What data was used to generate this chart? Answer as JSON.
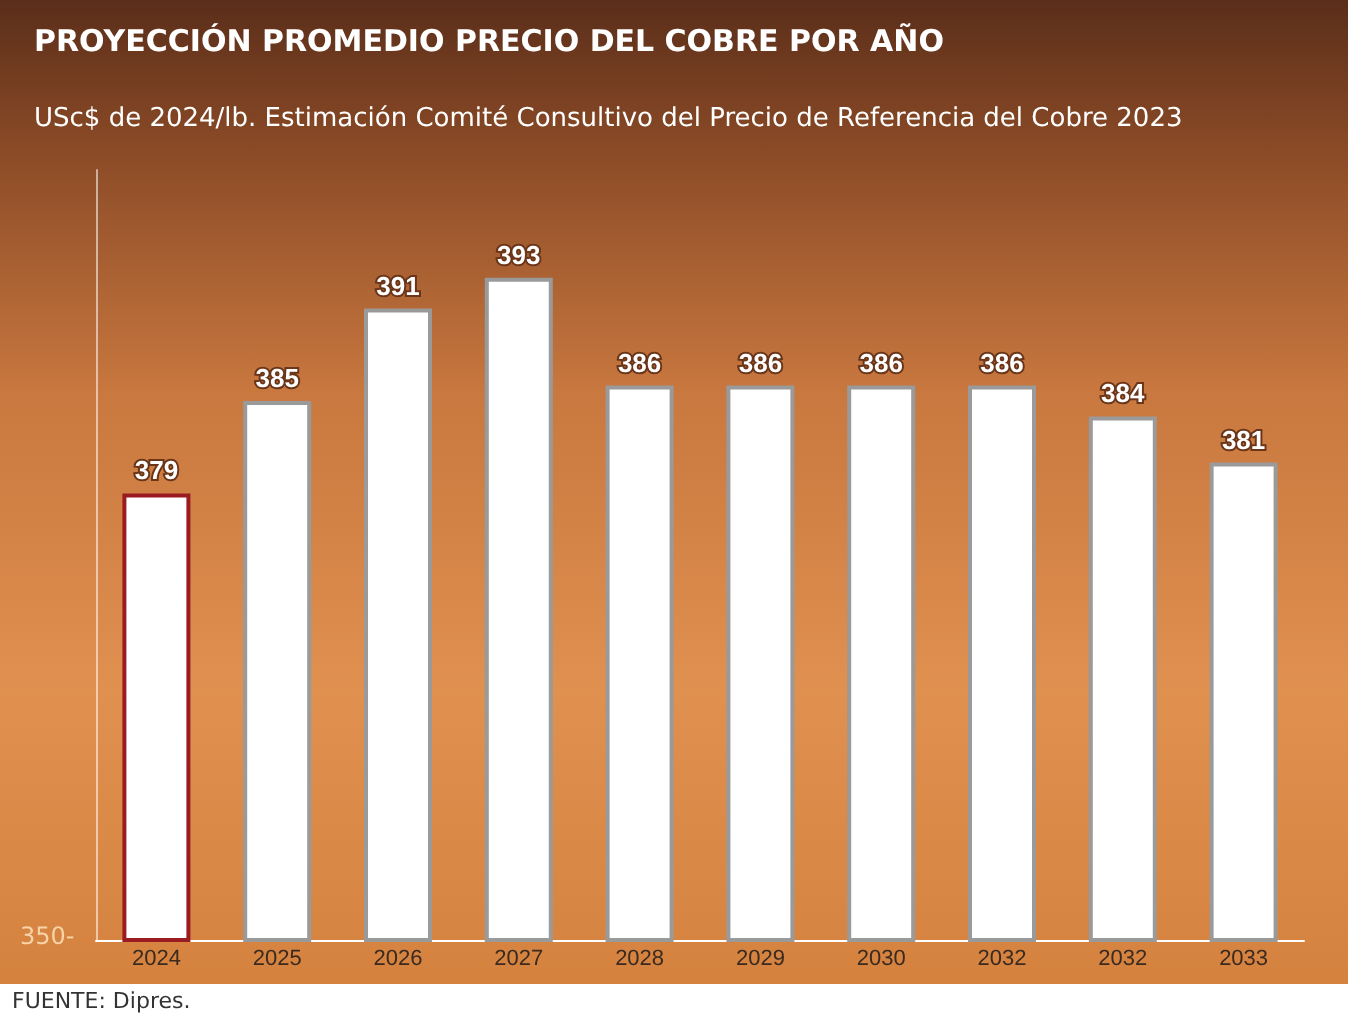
{
  "chart_data": {
    "type": "bar",
    "title": "PROYECCIÓN PROMEDIO PRECIO DEL COBRE POR AÑO",
    "subtitle": "USc$ de 2024/lb. Estimación Comité Consultivo del Precio de Referencia del Cobre 2023",
    "categories": [
      "2024",
      "2025",
      "2026",
      "2027",
      "2028",
      "2029",
      "2030",
      "2032",
      "2032",
      "2033"
    ],
    "values": [
      379,
      385,
      391,
      393,
      386,
      386,
      386,
      386,
      384,
      381
    ],
    "colors": [
      "#ffffff",
      "#ffffff",
      "#ffffff",
      "#ffffff",
      "#ffffff",
      "#ffffff",
      "#ffffff",
      "#ffffff",
      "#ffffff",
      "#ffffff"
    ],
    "ylim": [
      350,
      400
    ],
    "data_labels": true,
    "annotations": [
      "350-",
      "FUENTE: Dipres."
    ]
  }
}
